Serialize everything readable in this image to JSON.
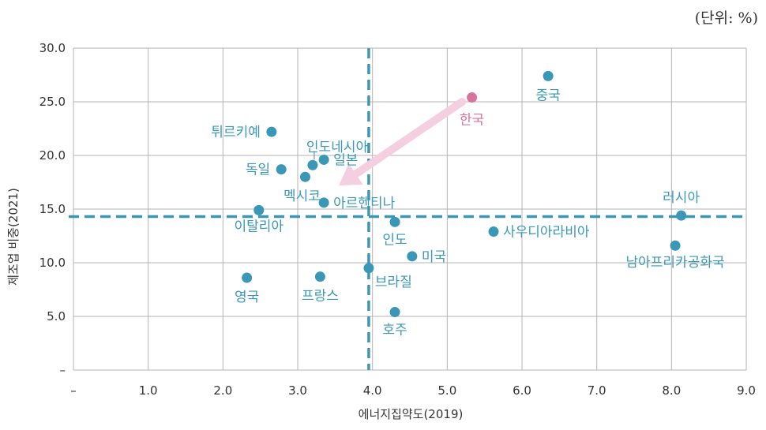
{
  "unit_note": "(단위: %)",
  "chart_data": {
    "type": "scatter",
    "xlabel": "에너지집약도(2019)",
    "ylabel": "제조업 비중(2021)",
    "xlim": [
      0,
      9
    ],
    "ylim": [
      0,
      30
    ],
    "grid": true,
    "x_ticks": [
      "–",
      "1.0",
      "2.0",
      "3.0",
      "4.0",
      "5.0",
      "6.0",
      "7.0",
      "8.0",
      "9.0"
    ],
    "y_ticks": [
      "–",
      "5.0",
      "10.0",
      "15.0",
      "20.0",
      "25.0",
      "30.0"
    ],
    "reference_lines": {
      "x": 3.95,
      "y": 14.3
    },
    "colors": {
      "point": "#3a97b6",
      "highlight": "#d9739d",
      "arrow": "#f4cfdf",
      "grid": "#b5b5b5",
      "ref_line": "#3a97b6"
    },
    "points": [
      {
        "label": "중국",
        "x": 6.35,
        "y": 27.4
      },
      {
        "label": "한국",
        "x": 5.33,
        "y": 25.4,
        "highlight": true
      },
      {
        "label": "튀르키예",
        "x": 2.65,
        "y": 22.2
      },
      {
        "label": "인도네시아",
        "x": 3.2,
        "y": 19.1
      },
      {
        "label": "일본",
        "x": 3.35,
        "y": 19.6
      },
      {
        "label": "독일",
        "x": 2.78,
        "y": 18.7
      },
      {
        "label": "멕시코",
        "x": 3.1,
        "y": 18.0
      },
      {
        "label": "아르헨티나",
        "x": 3.35,
        "y": 15.6
      },
      {
        "label": "이탈리아",
        "x": 2.48,
        "y": 14.9
      },
      {
        "label": "인도",
        "x": 4.3,
        "y": 13.8
      },
      {
        "label": "사우디아라비아",
        "x": 5.62,
        "y": 12.9
      },
      {
        "label": "러시아",
        "x": 8.13,
        "y": 14.4
      },
      {
        "label": "남아프리카공화국",
        "x": 8.05,
        "y": 11.6
      },
      {
        "label": "미국",
        "x": 4.53,
        "y": 10.6
      },
      {
        "label": "브라질",
        "x": 3.95,
        "y": 9.5
      },
      {
        "label": "영국",
        "x": 2.32,
        "y": 8.6
      },
      {
        "label": "프랑스",
        "x": 3.3,
        "y": 8.7
      },
      {
        "label": "호주",
        "x": 4.3,
        "y": 5.4
      }
    ],
    "arrow": {
      "from": [
        5.2,
        25.0
      ],
      "to": [
        3.55,
        17.2
      ]
    }
  }
}
